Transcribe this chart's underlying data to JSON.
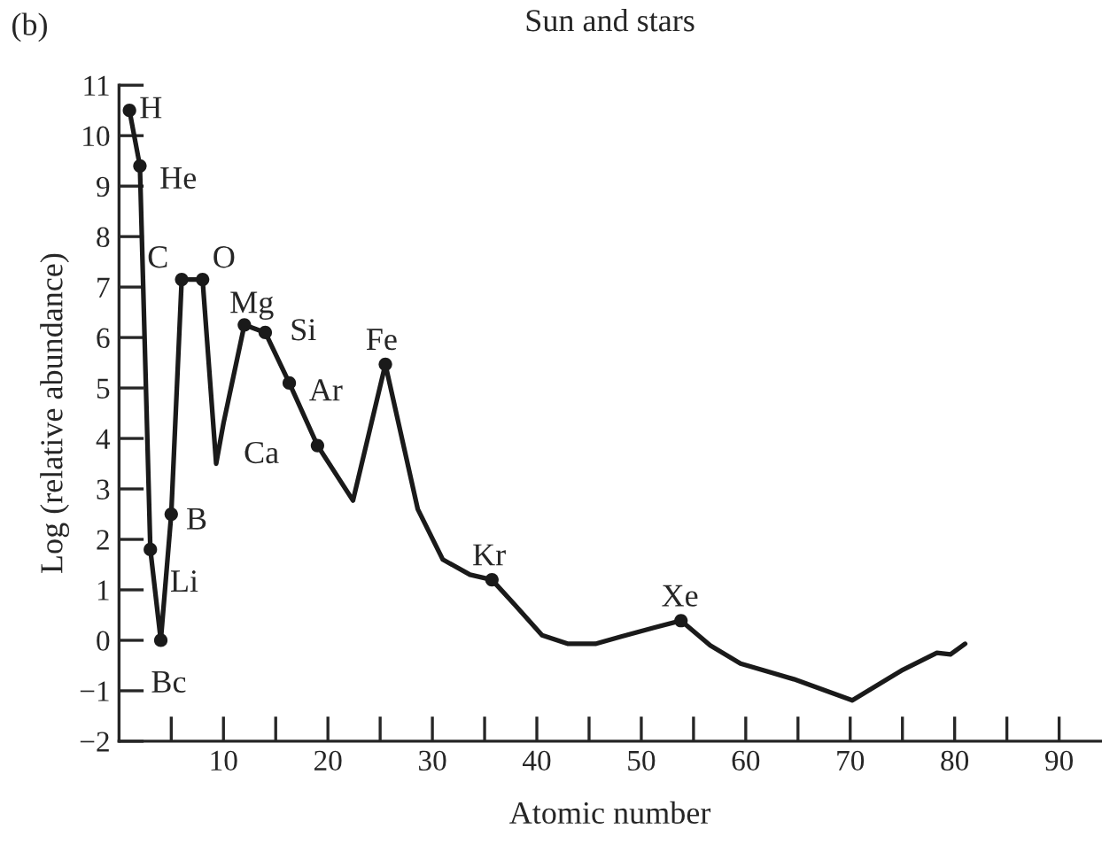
{
  "chart_data": {
    "type": "line",
    "title": "Sun and stars",
    "xlabel": "Atomic number",
    "ylabel": "Log (relative abundance)",
    "xlim": [
      0,
      94
    ],
    "ylim": [
      -2,
      11
    ],
    "xticks": [
      {
        "value": 5,
        "label": null
      },
      10,
      {
        "value": 15,
        "label": null
      },
      20,
      {
        "value": 25,
        "label": null
      },
      30,
      {
        "value": 35,
        "label": null
      },
      40,
      {
        "value": 45,
        "label": null
      },
      50,
      {
        "value": 55,
        "label": null
      },
      60,
      {
        "value": 65,
        "label": null
      },
      70,
      {
        "value": 75,
        "label": null
      },
      80,
      {
        "value": 85,
        "label": null
      },
      90
    ],
    "yticks": [
      -2,
      -1,
      0,
      1,
      2,
      3,
      4,
      5,
      6,
      7,
      8,
      9,
      10,
      11
    ],
    "grid": false,
    "legend": false,
    "series": [
      {
        "color": "#1a1a1a",
        "marker": "none",
        "x": [
          1,
          2,
          3,
          4,
          5,
          6,
          8,
          9.3,
          10,
          12,
          14,
          16.3,
          19,
          22.4,
          25.5,
          28.6,
          31,
          33.6,
          35.7,
          37.9,
          40.5,
          43,
          45.6,
          48,
          51.2,
          53.8,
          56.6,
          59.5,
          64.6,
          70.2,
          74.9,
          78.3,
          79.6,
          81
        ],
        "values": [
          10.5,
          9.4,
          1.8,
          0,
          2.5,
          7.15,
          7.15,
          3.5,
          4.3,
          6.25,
          6.1,
          5.1,
          3.86,
          2.77,
          5.47,
          2.6,
          1.6,
          1.3,
          1.2,
          0.7,
          0.1,
          -0.07,
          -0.07,
          0.07,
          0.25,
          0.39,
          -0.1,
          -0.46,
          -0.77,
          -1.19,
          -0.6,
          -0.25,
          -0.28,
          -0.07
        ]
      },
      {
        "type": "scatter",
        "color": "#1a1a1a",
        "marker": "circle",
        "x": [
          1,
          2,
          3,
          4,
          5,
          6,
          8,
          12,
          14,
          16.3,
          19,
          25.5,
          35.7,
          53.8
        ],
        "values": [
          10.5,
          9.4,
          1.8,
          0,
          2.5,
          7.15,
          7.15,
          6.25,
          6.1,
          5.1,
          3.86,
          5.47,
          1.2,
          0.39
        ]
      }
    ],
    "annotations": [
      "(b)",
      {
        "text": "H",
        "x": 1,
        "y": 10.5
      },
      {
        "text": "He",
        "x": 2,
        "y": 9.4
      },
      {
        "text": "Li",
        "x": 3,
        "y": 1.8
      },
      {
        "text": "Bc",
        "x": 4,
        "y": 0
      },
      {
        "text": "B",
        "x": 5,
        "y": 2.5
      },
      {
        "text": "C",
        "x": 6,
        "y": 7.15
      },
      {
        "text": "O",
        "x": 8,
        "y": 7.15
      },
      {
        "text": "Mg",
        "x": 12,
        "y": 6.25
      },
      {
        "text": "Si",
        "x": 14,
        "y": 6.1
      },
      {
        "text": "Ar",
        "x": 16.3,
        "y": 5.1
      },
      {
        "text": "Ca",
        "x": 19,
        "y": 3.86
      },
      {
        "text": "Fe",
        "x": 25.5,
        "y": 5.47
      },
      {
        "text": "Kr",
        "x": 35.7,
        "y": 1.2
      },
      {
        "text": "Xe",
        "x": 53.8,
        "y": 0.39
      }
    ]
  }
}
